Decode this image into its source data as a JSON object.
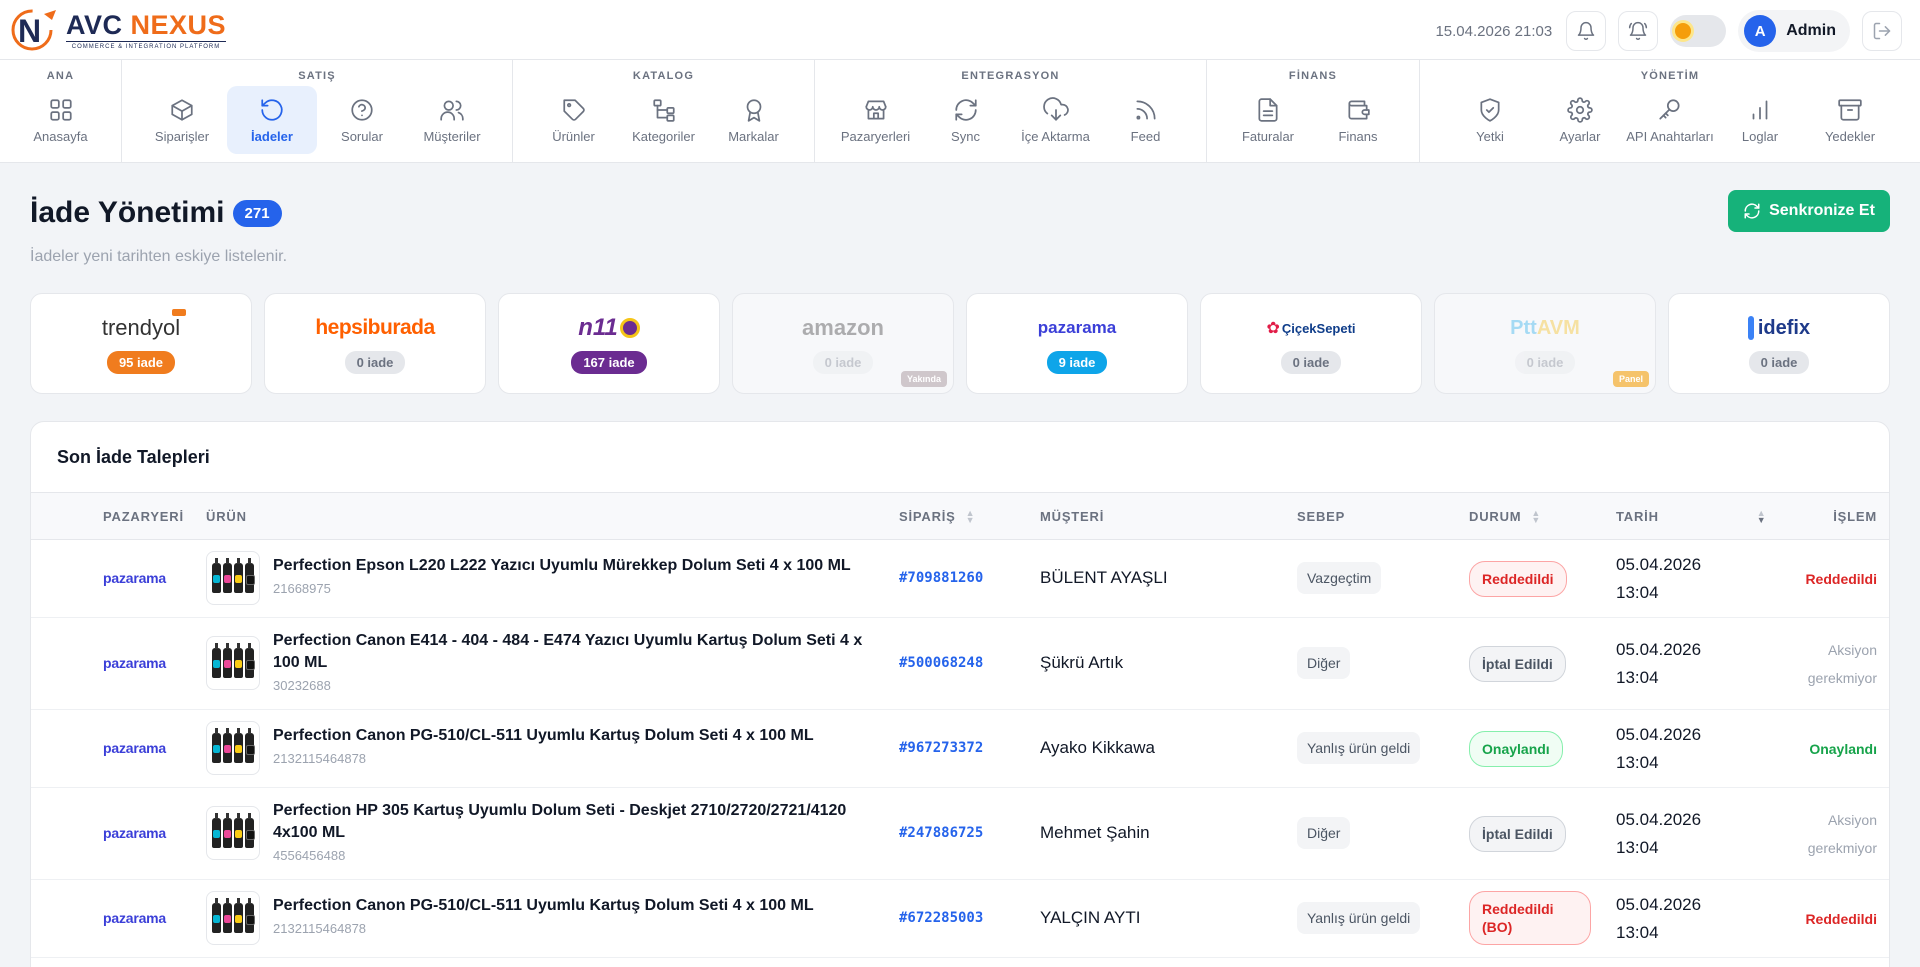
{
  "header": {
    "brand_name_prefix": "AVC ",
    "brand_name_accent": "NEXUS",
    "brand_tagline": "COMMERCE & INTEGRATION PLATFORM",
    "datetime": "15.04.2026 21:03",
    "user_initial": "A",
    "user_name": "Admin"
  },
  "nav": {
    "groups": [
      {
        "title": "ANA",
        "items": [
          {
            "label": "Anasayfa",
            "icon": "grid-icon"
          }
        ]
      },
      {
        "title": "SATIŞ",
        "items": [
          {
            "label": "Siparişler",
            "icon": "box-icon"
          },
          {
            "label": "İadeler",
            "icon": "undo-icon",
            "active": true
          },
          {
            "label": "Sorular",
            "icon": "question-icon"
          },
          {
            "label": "Müşteriler",
            "icon": "users-icon"
          }
        ]
      },
      {
        "title": "KATALOG",
        "items": [
          {
            "label": "Ürünler",
            "icon": "tag-icon"
          },
          {
            "label": "Kategoriler",
            "icon": "tree-icon"
          },
          {
            "label": "Markalar",
            "icon": "award-icon"
          }
        ]
      },
      {
        "title": "ENTEGRASYON",
        "items": [
          {
            "label": "Pazaryerleri",
            "icon": "store-icon"
          },
          {
            "label": "Sync",
            "icon": "refresh-icon"
          },
          {
            "label": "İçe Aktarma",
            "icon": "cloud-download-icon"
          },
          {
            "label": "Feed",
            "icon": "rss-icon"
          }
        ]
      },
      {
        "title": "FİNANS",
        "items": [
          {
            "label": "Faturalar",
            "icon": "file-icon"
          },
          {
            "label": "Finans",
            "icon": "wallet-icon"
          }
        ]
      },
      {
        "title": "YÖNETİM",
        "items": [
          {
            "label": "Yetki",
            "icon": "shield-icon"
          },
          {
            "label": "Ayarlar",
            "icon": "gear-icon"
          },
          {
            "label": "API Anahtarları",
            "icon": "key-icon"
          },
          {
            "label": "Loglar",
            "icon": "bar-chart-icon"
          },
          {
            "label": "Yedekler",
            "icon": "archive-icon"
          }
        ]
      }
    ]
  },
  "page": {
    "title": "İade Yönetimi",
    "count": "271",
    "subtitle": "İadeler yeni tarihten eskiye listelenir.",
    "sync_label": "Senkronize Et"
  },
  "marketplaces": [
    {
      "name": "trendyol",
      "count_label": "95 iade",
      "pill_color": "#f07c1e"
    },
    {
      "name": "hepsiburada",
      "count_label": "0 iade"
    },
    {
      "name": "n11",
      "count_label": "167 iade",
      "pill_color": "#6b2c91"
    },
    {
      "name": "amazon",
      "count_label": "0 iade",
      "tag": "Yakında",
      "disabled": true
    },
    {
      "name": "pazarama",
      "count_label": "9 iade",
      "pill_color": "#0ea5e9"
    },
    {
      "name": "ÇiçekSepeti",
      "count_label": "0 iade"
    },
    {
      "name": "PttAVM",
      "count_label": "0 iade",
      "tag": "Panel",
      "disabled": true
    },
    {
      "name": "idefix",
      "count_label": "0 iade"
    }
  ],
  "table": {
    "title": "Son İade Talepleri",
    "columns": [
      "PAZARYERİ",
      "ÜRÜN",
      "SİPARİŞ",
      "MÜŞTERİ",
      "SEBEP",
      "DURUM",
      "TARİH",
      "İŞLEM"
    ],
    "rows": [
      {
        "marketplace": "pazarama",
        "product": "Perfection Epson L220 L222 Yazıcı Uyumlu Mürekkep Dolum Seti 4 x 100 ML",
        "sku": "21668975",
        "order": "#709881260",
        "customer": "BÜLENT AYAŞLI",
        "reason": "Vazgeçtim",
        "status": "Reddedildi",
        "status_type": "red",
        "date": "05.04.2026",
        "time": "13:04",
        "action": "Reddedildi",
        "action_type": "red"
      },
      {
        "marketplace": "pazarama",
        "product": "Perfection Canon E414 - 404 - 484 - E474 Yazıcı Uyumlu Kartuş Dolum Seti 4 x 100 ML",
        "sku": "30232688",
        "order": "#500068248",
        "customer": "Şükrü Artık",
        "reason": "Diğer",
        "status": "İptal Edildi",
        "status_type": "gray",
        "date": "05.04.2026",
        "time": "13:04",
        "action": "Aksiyon gerekmiyor",
        "action_type": "gray"
      },
      {
        "marketplace": "pazarama",
        "product": "Perfection Canon PG-510/CL-511 Uyumlu Kartuş Dolum Seti 4 x 100 ML",
        "sku": "2132115464878",
        "order": "#967273372",
        "customer": "Ayako Kikkawa",
        "reason": "Yanlış ürün geldi",
        "status": "Onaylandı",
        "status_type": "green",
        "date": "05.04.2026",
        "time": "13:04",
        "action": "Onaylandı",
        "action_type": "green"
      },
      {
        "marketplace": "pazarama",
        "product": "Perfection HP 305 Kartuş Uyumlu Dolum Seti - Deskjet 2710/2720/2721/4120 4x100 ML",
        "sku": "4556456488",
        "order": "#247886725",
        "customer": "Mehmet Şahin",
        "reason": "Diğer",
        "status": "İptal Edildi",
        "status_type": "gray",
        "date": "05.04.2026",
        "time": "13:04",
        "action": "Aksiyon gerekmiyor",
        "action_type": "gray"
      },
      {
        "marketplace": "pazarama",
        "product": "Perfection Canon PG-510/CL-511 Uyumlu Kartuş Dolum Seti 4 x 100 ML",
        "sku": "2132115464878",
        "order": "#672285003",
        "customer": "YALÇIN AYTI",
        "reason": "Yanlış ürün geldi",
        "status": "Reddedildi (BO)",
        "status_type": "red",
        "date": "05.04.2026",
        "time": "13:04",
        "action": "Reddedildi",
        "action_type": "red"
      }
    ]
  }
}
